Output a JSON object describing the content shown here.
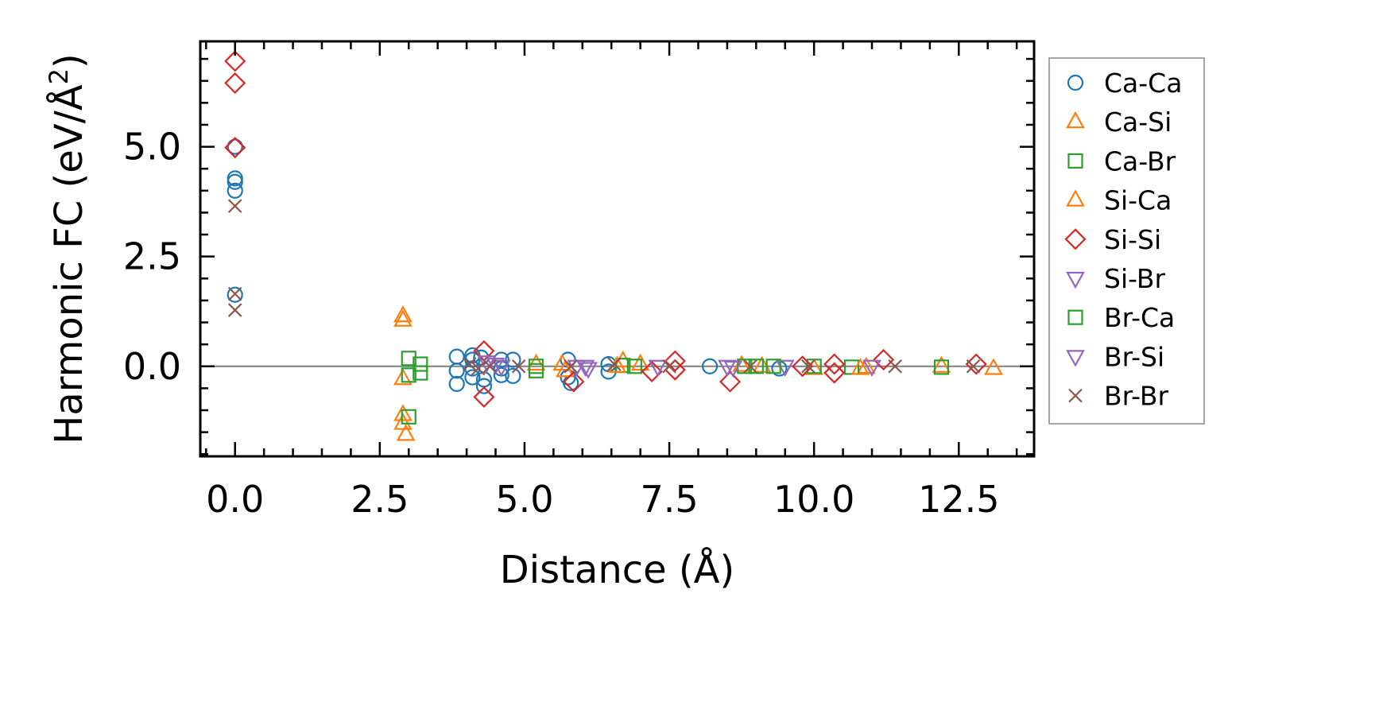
{
  "chart_data": {
    "type": "scatter",
    "xlabel": "Distance (Å)",
    "ylabel_main": "Harmonic FC (eV/Å",
    "ylabel_sup": "2",
    "ylabel_close": ")",
    "xlim": [
      -0.6,
      13.8
    ],
    "ylim": [
      -2.05,
      7.4
    ],
    "xticks": [
      0.0,
      2.5,
      5.0,
      7.5,
      10.0,
      12.5
    ],
    "xtick_labels": [
      "0.0",
      "2.5",
      "5.0",
      "7.5",
      "10.0",
      "12.5"
    ],
    "yticks": [
      0.0,
      2.5,
      5.0
    ],
    "ytick_labels": [
      "0.0",
      "2.5",
      "5.0"
    ],
    "x_minor_step": 0.5,
    "y_minor_step": 0.5,
    "zero_line": true,
    "grid": false,
    "legend_position": "outside-right",
    "series": [
      {
        "name": "Ca-Ca",
        "marker": "circle",
        "color": "#1f77b4",
        "points": [
          [
            0,
            5.0
          ],
          [
            0,
            4.28
          ],
          [
            0,
            4.2
          ],
          [
            0,
            4.0
          ],
          [
            0,
            1.63
          ],
          [
            3.83,
            0.22
          ],
          [
            3.83,
            -0.1
          ],
          [
            3.83,
            -0.4
          ],
          [
            4.1,
            0.25
          ],
          [
            4.1,
            0.15
          ],
          [
            4.1,
            -0.05
          ],
          [
            4.1,
            -0.25
          ],
          [
            4.25,
            0.2
          ],
          [
            4.3,
            -0.3
          ],
          [
            4.3,
            -0.45
          ],
          [
            4.6,
            0.15
          ],
          [
            4.6,
            -0.05
          ],
          [
            4.6,
            -0.2
          ],
          [
            4.8,
            0.15
          ],
          [
            4.8,
            -0.22
          ],
          [
            5.75,
            0.15
          ],
          [
            5.75,
            -0.25
          ],
          [
            5.8,
            -0.38
          ],
          [
            6.45,
            0.05
          ],
          [
            6.45,
            -0.12
          ],
          [
            8.2,
            0.0
          ],
          [
            9.4,
            -0.05
          ]
        ]
      },
      {
        "name": "Ca-Si",
        "marker": "triangle-up",
        "color": "#ff7f0e",
        "points": [
          [
            2.9,
            1.15
          ],
          [
            2.9,
            1.05
          ],
          [
            2.9,
            -0.28
          ],
          [
            2.9,
            -1.1
          ],
          [
            2.9,
            -1.3
          ],
          [
            2.95,
            -1.55
          ],
          [
            5.2,
            0.05
          ],
          [
            5.65,
            0.05
          ],
          [
            6.7,
            0.12
          ],
          [
            7.0,
            0.05
          ],
          [
            8.75,
            0.02
          ],
          [
            9.1,
            0.0
          ],
          [
            10.0,
            -0.05
          ],
          [
            10.9,
            -0.02
          ],
          [
            12.2,
            0.0
          ],
          [
            13.1,
            -0.05
          ]
        ]
      },
      {
        "name": "Ca-Br",
        "marker": "square",
        "color": "#2ca02c",
        "points": [
          [
            3.0,
            0.18
          ],
          [
            3.0,
            -0.2
          ],
          [
            3.0,
            -1.15
          ],
          [
            3.2,
            0.05
          ],
          [
            3.2,
            -0.15
          ],
          [
            5.2,
            0.0
          ],
          [
            5.2,
            -0.1
          ],
          [
            6.7,
            0.02
          ],
          [
            6.9,
            0.0
          ],
          [
            9.0,
            0.0
          ],
          [
            10.0,
            0.0
          ],
          [
            10.65,
            -0.02
          ],
          [
            12.2,
            -0.02
          ]
        ]
      },
      {
        "name": "Si-Ca",
        "marker": "triangle-up",
        "color": "#ff7f0e",
        "points": [
          [
            5.7,
            -0.1
          ],
          [
            6.6,
            0.0
          ],
          [
            10.8,
            -0.05
          ]
        ]
      },
      {
        "name": "Si-Si",
        "marker": "diamond",
        "color": "#d62728",
        "points": [
          [
            0,
            6.95
          ],
          [
            0,
            6.45
          ],
          [
            0,
            4.98
          ],
          [
            4.3,
            0.35
          ],
          [
            4.3,
            -0.7
          ],
          [
            5.85,
            -0.35
          ],
          [
            7.2,
            -0.12
          ],
          [
            7.6,
            0.12
          ],
          [
            7.6,
            -0.08
          ],
          [
            8.55,
            -0.35
          ],
          [
            9.8,
            0.0
          ],
          [
            10.35,
            0.05
          ],
          [
            10.35,
            -0.15
          ],
          [
            11.2,
            0.15
          ],
          [
            12.8,
            0.05
          ]
        ]
      },
      {
        "name": "Si-Br",
        "marker": "triangle-down",
        "color": "#9467bd",
        "points": [
          [
            4.35,
            0.1
          ],
          [
            4.5,
            0.05
          ],
          [
            4.6,
            0.0
          ],
          [
            5.9,
            0.0
          ],
          [
            6.05,
            0.0
          ],
          [
            7.3,
            0.0
          ],
          [
            8.5,
            0.0
          ],
          [
            9.5,
            0.0
          ],
          [
            11.0,
            0.0
          ]
        ]
      },
      {
        "name": "Br-Ca",
        "marker": "square",
        "color": "#2ca02c",
        "points": [
          [
            8.8,
            0.0
          ],
          [
            9.3,
            0.0
          ]
        ]
      },
      {
        "name": "Br-Si",
        "marker": "triangle-down",
        "color": "#9467bd",
        "points": [
          [
            6.1,
            -0.05
          ],
          [
            8.6,
            -0.02
          ]
        ]
      },
      {
        "name": "Br-Br",
        "marker": "x",
        "color": "#8c564b",
        "points": [
          [
            0,
            3.65
          ],
          [
            0,
            1.65
          ],
          [
            0,
            1.28
          ],
          [
            4.05,
            0.05
          ],
          [
            4.2,
            -0.05
          ],
          [
            4.4,
            0.0
          ],
          [
            4.9,
            0.0
          ],
          [
            5.8,
            0.0
          ],
          [
            6.55,
            0.05
          ],
          [
            7.5,
            0.0
          ],
          [
            8.9,
            0.0
          ],
          [
            9.9,
            0.0
          ],
          [
            11.4,
            0.0
          ],
          [
            12.75,
            0.0
          ]
        ]
      }
    ]
  }
}
